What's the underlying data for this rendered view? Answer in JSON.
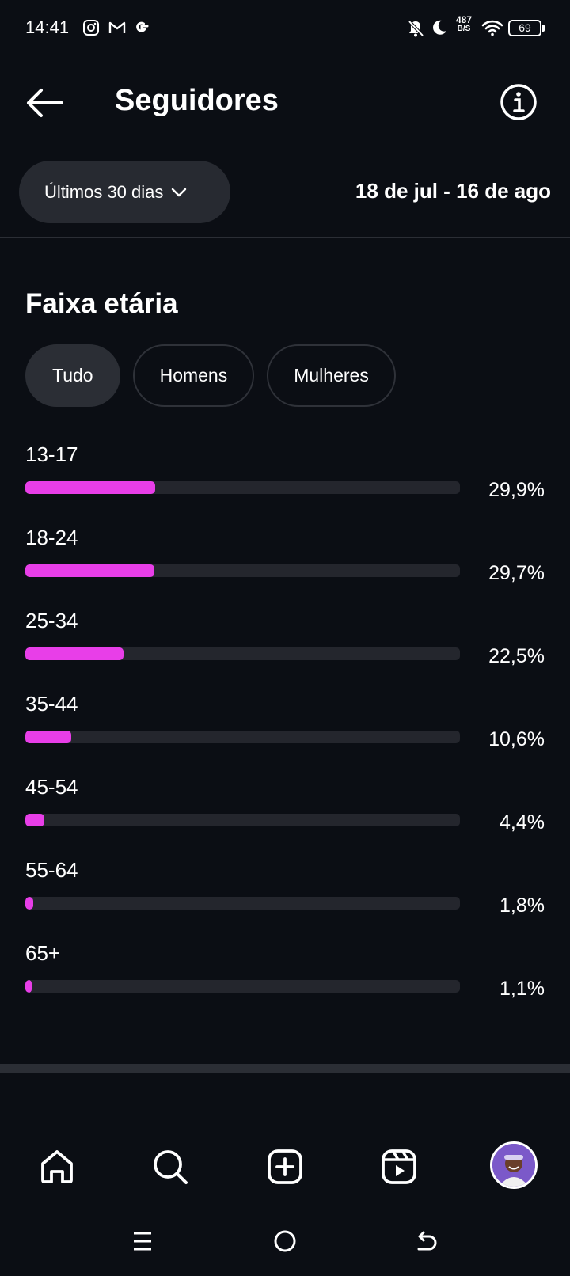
{
  "status_bar": {
    "time": "14:41",
    "net_speed_value": "487",
    "net_speed_unit": "B/S",
    "battery": "69"
  },
  "header": {
    "title": "Seguidores"
  },
  "range": {
    "selected": "Últimos 30 dias",
    "dates": "18 de jul - 16 de ago"
  },
  "section": {
    "title": "Faixa etária"
  },
  "filters": [
    {
      "label": "Tudo",
      "active": true
    },
    {
      "label": "Homens",
      "active": false
    },
    {
      "label": "Mulheres",
      "active": false
    }
  ],
  "age_groups": [
    {
      "label": "13-17",
      "value": "29,9%",
      "percent": 29.9
    },
    {
      "label": "18-24",
      "value": "29,7%",
      "percent": 29.7
    },
    {
      "label": "25-34",
      "value": "22,5%",
      "percent": 22.5
    },
    {
      "label": "35-44",
      "value": "10,6%",
      "percent": 10.6
    },
    {
      "label": "45-54",
      "value": "4,4%",
      "percent": 4.4
    },
    {
      "label": "55-64",
      "value": "1,8%",
      "percent": 1.8
    },
    {
      "label": "65+",
      "value": "1,1%",
      "percent": 1.1
    }
  ],
  "colors": {
    "background": "#0b0e14",
    "bar_fill": "#e83ee8",
    "bar_track": "#24262d",
    "chip_active": "#2b2e35"
  },
  "icons": {
    "back": "arrow-left-icon",
    "info": "info-icon",
    "dropdown": "chevron-down-icon",
    "nav_home": "home-icon",
    "nav_search": "search-icon",
    "nav_create": "plus-square-icon",
    "nav_reels": "reels-icon"
  }
}
